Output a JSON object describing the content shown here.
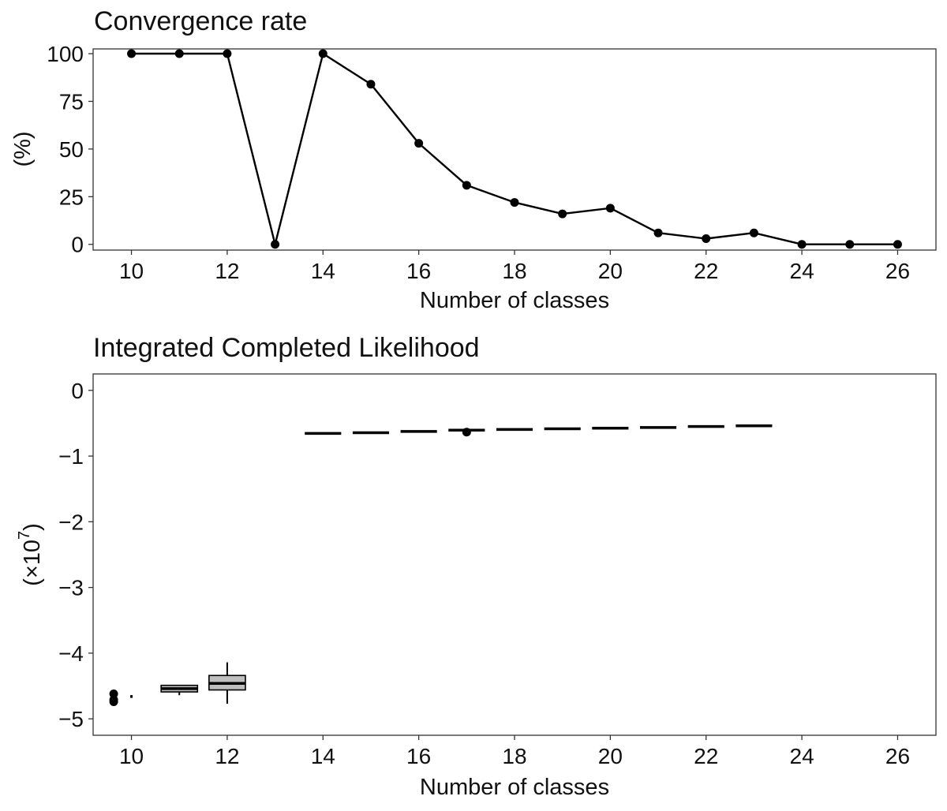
{
  "chart_data": [
    {
      "type": "line",
      "title": "Convergence rate",
      "xlabel": "Number of classes",
      "ylabel": "(%)",
      "xlim": [
        9.2,
        26.8
      ],
      "ylim": [
        -3,
        102.5
      ],
      "xticks": [
        10,
        12,
        14,
        16,
        18,
        20,
        22,
        24,
        26
      ],
      "yticks": [
        0,
        25,
        50,
        75,
        100
      ],
      "grid": false,
      "legend": "none",
      "color": "#000000",
      "x": [
        10,
        11,
        12,
        13,
        14,
        15,
        16,
        17,
        18,
        19,
        20,
        21,
        22,
        23,
        24,
        25,
        26
      ],
      "y": [
        100,
        100,
        100,
        0,
        100,
        84,
        53,
        31,
        22,
        16,
        19,
        6,
        3,
        6,
        0,
        0,
        0
      ]
    },
    {
      "type": "box",
      "title": "Integrated Completed Likelihood",
      "xlabel": "Number of classes",
      "ylabel_prefix": "(",
      "ylabel_base": "×10",
      "ylabel_exp": "7",
      "ylabel_suffix": ")",
      "xlim": [
        9.2,
        26.8
      ],
      "ylim": [
        -5.25,
        0.25
      ],
      "xticks": [
        10,
        12,
        14,
        16,
        18,
        20,
        22,
        24,
        26
      ],
      "yticks": [
        0,
        -1,
        -2,
        -3,
        -4,
        -5
      ],
      "ytick_labels": [
        "0",
        "−1",
        "−2",
        "−3",
        "−4",
        "−5"
      ],
      "grid": false,
      "legend": "none",
      "box_fill": "#bfbfbf",
      "boxes": [
        {
          "x": 10,
          "low": -4.66,
          "q1": -4.66,
          "median": -4.66,
          "q3": -4.66,
          "high": -4.66,
          "outliers": [
            -4.62,
            -4.71,
            -4.74
          ]
        },
        {
          "x": 11,
          "low": -4.64,
          "q1": -4.59,
          "median": -4.54,
          "q3": -4.49,
          "high": -4.49,
          "outliers": []
        },
        {
          "x": 12,
          "low": -4.77,
          "q1": -4.56,
          "median": -4.46,
          "q3": -4.34,
          "high": -4.14,
          "outliers": []
        },
        {
          "x": 14,
          "low": -0.655,
          "q1": -0.655,
          "median": -0.655,
          "q3": -0.655,
          "high": -0.655,
          "outliers": []
        },
        {
          "x": 15,
          "low": -0.645,
          "q1": -0.645,
          "median": -0.645,
          "q3": -0.645,
          "high": -0.645,
          "outliers": []
        },
        {
          "x": 16,
          "low": -0.625,
          "q1": -0.625,
          "median": -0.625,
          "q3": -0.625,
          "high": -0.625,
          "outliers": []
        },
        {
          "x": 17,
          "low": -0.605,
          "q1": -0.605,
          "median": -0.605,
          "q3": -0.605,
          "high": -0.605,
          "outliers": [
            -0.635
          ]
        },
        {
          "x": 18,
          "low": -0.595,
          "q1": -0.595,
          "median": -0.595,
          "q3": -0.595,
          "high": -0.595,
          "outliers": []
        },
        {
          "x": 19,
          "low": -0.585,
          "q1": -0.585,
          "median": -0.585,
          "q3": -0.585,
          "high": -0.585,
          "outliers": []
        },
        {
          "x": 20,
          "low": -0.575,
          "q1": -0.575,
          "median": -0.575,
          "q3": -0.575,
          "high": -0.575,
          "outliers": []
        },
        {
          "x": 21,
          "low": -0.565,
          "q1": -0.565,
          "median": -0.565,
          "q3": -0.565,
          "high": -0.565,
          "outliers": []
        },
        {
          "x": 22,
          "low": -0.55,
          "q1": -0.55,
          "median": -0.55,
          "q3": -0.55,
          "high": -0.55,
          "outliers": []
        },
        {
          "x": 23,
          "low": -0.54,
          "q1": -0.54,
          "median": -0.54,
          "q3": -0.54,
          "high": -0.54,
          "outliers": []
        }
      ]
    }
  ]
}
